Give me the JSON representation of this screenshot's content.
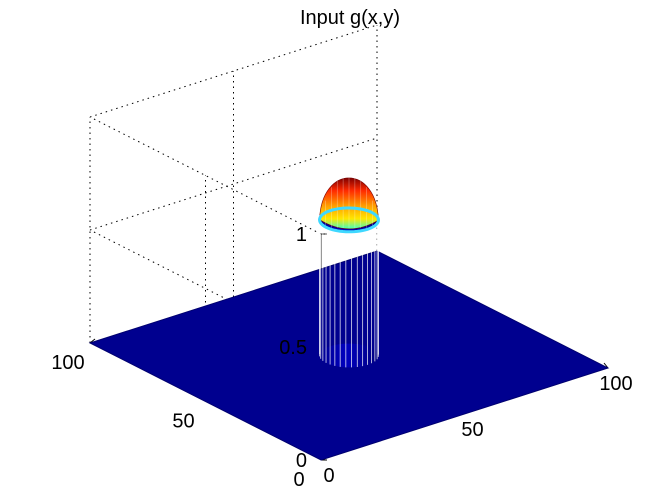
{
  "chart_data": {
    "type": "surface",
    "title": "Input g(x,y)",
    "xlabel": "",
    "ylabel": "",
    "zlabel": "",
    "xlim": [
      0,
      100
    ],
    "ylim": [
      0,
      100
    ],
    "zlim": [
      0,
      1
    ],
    "x_ticks": [
      "0",
      "50",
      "100"
    ],
    "y_ticks": [
      "0",
      "50",
      "100"
    ],
    "z_ticks": [
      "0",
      "0.5",
      "1"
    ],
    "grid": true,
    "colormap": "jet",
    "floor_color": "#00008f",
    "surface": {
      "description_of_shape": "cylindrical raised disk",
      "center_x": 50,
      "center_y": 50,
      "radius": 8,
      "rim_height": 0.6,
      "peak_height": 0.83,
      "base_height": 0
    }
  }
}
